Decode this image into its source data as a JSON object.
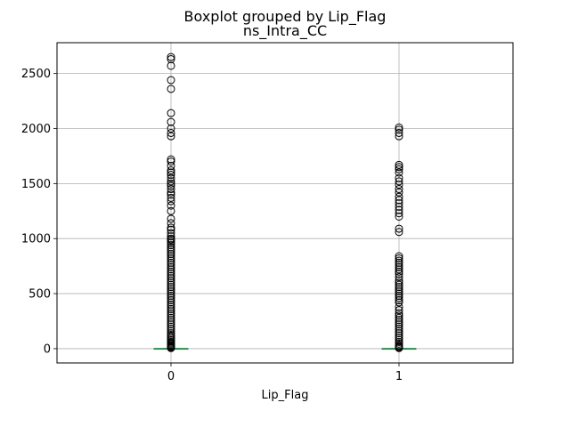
{
  "chart_data": {
    "type": "boxplot",
    "suptitle": "Boxplot grouped by Lip_Flag",
    "title": "ns_Intra_CC",
    "xlabel": "Lip_Flag",
    "ylabel": "",
    "categories": [
      "0",
      "1"
    ],
    "ylim": [
      -130,
      2780
    ],
    "xlim": [
      0.5,
      2.5
    ],
    "yticks": [
      0,
      500,
      1000,
      1500,
      2000,
      2500
    ],
    "grid": true,
    "colors": {
      "box": "#1f77b4",
      "median": "#2ca02c",
      "flier": "#000000",
      "grid": "#b0b0b0"
    },
    "series": [
      {
        "category": "0",
        "box": {
          "q1": 0,
          "median": 0,
          "q3": 1,
          "whisker_low": 0,
          "whisker_high": 2
        },
        "fliers": [
          5,
          10,
          15,
          20,
          28,
          35,
          45,
          55,
          65,
          80,
          95,
          110,
          125,
          140,
          160,
          180,
          200,
          220,
          240,
          260,
          280,
          300,
          320,
          340,
          360,
          380,
          400,
          420,
          440,
          460,
          480,
          500,
          520,
          540,
          560,
          580,
          600,
          620,
          640,
          660,
          680,
          700,
          720,
          740,
          760,
          780,
          800,
          820,
          840,
          860,
          880,
          900,
          920,
          940,
          960,
          975,
          990,
          1000,
          1020,
          1050,
          1080,
          1100,
          1140,
          1180,
          1250,
          1300,
          1340,
          1370,
          1400,
          1420,
          1450,
          1480,
          1500,
          1520,
          1550,
          1580,
          1600,
          1620,
          1660,
          1700,
          1720,
          1930,
          1960,
          2000,
          2060,
          2140,
          2360,
          2440,
          2570,
          2630,
          2650
        ]
      },
      {
        "category": "1",
        "box": {
          "q1": 0,
          "median": 0,
          "q3": 1,
          "whisker_low": 0,
          "whisker_high": 2
        },
        "fliers": [
          5,
          12,
          20,
          30,
          45,
          60,
          80,
          100,
          120,
          140,
          160,
          180,
          200,
          220,
          240,
          260,
          280,
          300,
          320,
          350,
          380,
          420,
          440,
          460,
          480,
          500,
          520,
          540,
          560,
          580,
          600,
          620,
          650,
          680,
          700,
          720,
          740,
          760,
          780,
          800,
          820,
          840,
          1060,
          1090,
          1200,
          1230,
          1260,
          1290,
          1320,
          1350,
          1380,
          1420,
          1450,
          1490,
          1520,
          1550,
          1600,
          1630,
          1650,
          1670,
          1930,
          1960,
          1990,
          2010
        ]
      }
    ]
  }
}
